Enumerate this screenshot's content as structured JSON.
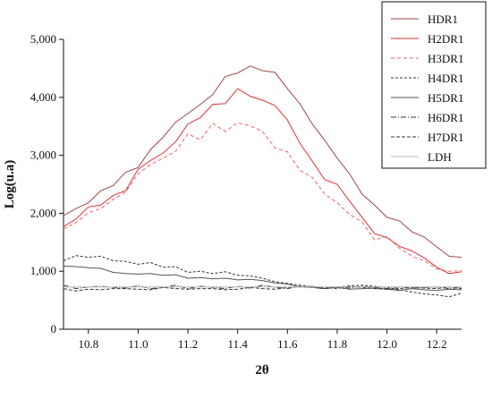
{
  "chart_data": {
    "type": "line",
    "title": "",
    "xlabel": "2θ",
    "ylabel": "Log(u.a)",
    "xlim": [
      10.7,
      12.3
    ],
    "ylim": [
      0,
      5000
    ],
    "x_ticks": [
      10.8,
      11.0,
      11.2,
      11.4,
      11.6,
      11.8,
      12.0,
      12.2
    ],
    "x_tick_labels": [
      "10.8",
      "11.0",
      "11.2",
      "11.4",
      "11.6",
      "11.8",
      "12.0",
      "12.2"
    ],
    "y_ticks": [
      0,
      1000,
      2000,
      3000,
      4000,
      5000
    ],
    "y_tick_labels": [
      "0",
      "1,000",
      "2,000",
      "3,000",
      "4,000",
      "5,000"
    ],
    "grid": false,
    "legend_position": "top-right",
    "x": [
      10.7,
      10.75,
      10.8,
      10.85,
      10.9,
      10.95,
      11.0,
      11.05,
      11.1,
      11.15,
      11.2,
      11.25,
      11.3,
      11.35,
      11.4,
      11.45,
      11.5,
      11.55,
      11.6,
      11.65,
      11.7,
      11.75,
      11.8,
      11.85,
      11.9,
      11.95,
      12.0,
      12.05,
      12.1,
      12.15,
      12.2,
      12.25,
      12.3
    ],
    "series": [
      {
        "name": "HDR1",
        "color": "#a04848",
        "dash": "solid",
        "values": [
          1960,
          2080,
          2180,
          2390,
          2480,
          2710,
          2790,
          3100,
          3310,
          3570,
          3720,
          3880,
          4050,
          4360,
          4420,
          4540,
          4460,
          4430,
          4150,
          3890,
          3540,
          3260,
          2950,
          2680,
          2330,
          2140,
          1930,
          1870,
          1680,
          1590,
          1420,
          1260,
          1240
        ]
      },
      {
        "name": "H2DR1",
        "color": "#e03030",
        "dash": "solid",
        "values": [
          1770,
          1900,
          2110,
          2140,
          2310,
          2390,
          2760,
          2910,
          3040,
          3230,
          3540,
          3650,
          3880,
          3890,
          4150,
          4020,
          3950,
          3860,
          3610,
          3210,
          2900,
          2580,
          2500,
          2210,
          1930,
          1650,
          1580,
          1430,
          1350,
          1230,
          1070,
          960,
          990
        ]
      },
      {
        "name": "H3DR1",
        "color": "#f06060",
        "dash": "4,3",
        "values": [
          1730,
          1840,
          2010,
          2080,
          2240,
          2370,
          2680,
          2840,
          2950,
          3070,
          3370,
          3270,
          3550,
          3410,
          3560,
          3510,
          3410,
          3130,
          3060,
          2740,
          2620,
          2330,
          2180,
          1980,
          1850,
          1540,
          1600,
          1400,
          1260,
          1180,
          1040,
          1000,
          1010
        ]
      },
      {
        "name": "H4DR1",
        "color": "#333333",
        "dash": "3,2",
        "values": [
          1180,
          1270,
          1240,
          1260,
          1180,
          1170,
          1120,
          1150,
          1070,
          1080,
          980,
          1000,
          960,
          990,
          930,
          920,
          880,
          820,
          790,
          760,
          730,
          720,
          700,
          750,
          760,
          740,
          720,
          680,
          640,
          610,
          590,
          560,
          620
        ]
      },
      {
        "name": "H5DR1",
        "color": "#555555",
        "dash": "solid",
        "values": [
          1090,
          1080,
          1060,
          1050,
          980,
          960,
          950,
          960,
          930,
          940,
          880,
          890,
          870,
          880,
          850,
          860,
          840,
          800,
          780,
          730,
          740,
          700,
          720,
          690,
          700,
          710,
          690,
          670,
          700,
          680,
          670,
          690,
          680
        ]
      },
      {
        "name": "H6DR1",
        "color": "#333333",
        "dash": "6,2,1,2",
        "values": [
          760,
          700,
          730,
          740,
          720,
          710,
          750,
          700,
          720,
          760,
          700,
          740,
          720,
          700,
          740,
          710,
          760,
          720,
          700,
          740,
          720,
          700,
          730,
          710,
          740,
          720,
          700,
          730,
          710,
          720,
          730,
          700,
          720
        ]
      },
      {
        "name": "H7DR1",
        "color": "#333333",
        "dash": "4,2",
        "values": [
          700,
          660,
          690,
          680,
          700,
          700,
          690,
          680,
          720,
          700,
          690,
          700,
          700,
          680,
          690,
          720,
          700,
          690,
          720,
          730,
          720,
          700,
          730,
          740,
          720,
          700,
          690,
          700,
          720,
          710,
          700,
          730,
          700
        ]
      },
      {
        "name": "LDH",
        "color": "#bbbbbb",
        "dash": "solid",
        "values": [
          730,
          730,
          730,
          730,
          730,
          730,
          730,
          730,
          730,
          730,
          730,
          730,
          730,
          730,
          730,
          730,
          730,
          730,
          730,
          730,
          730,
          730,
          730,
          730,
          730,
          730,
          730,
          730,
          730,
          730,
          730,
          730,
          730
        ]
      }
    ]
  }
}
